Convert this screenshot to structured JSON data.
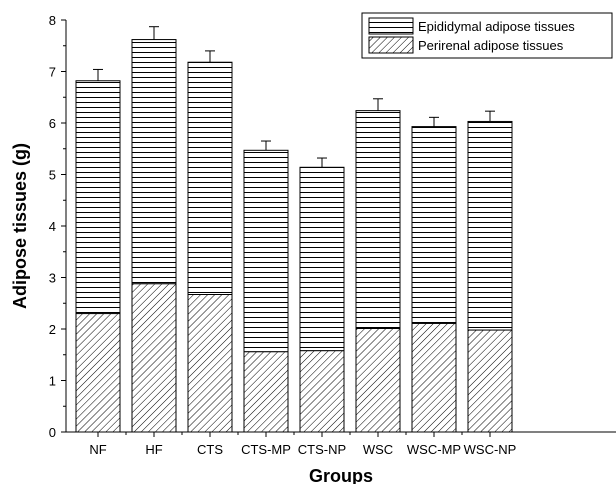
{
  "chart_data": {
    "type": "bar",
    "stacked": true,
    "categories": [
      "NF",
      "HF",
      "CTS",
      "CTS-MP",
      "CTS-NP",
      "WSC",
      "WSC-MP",
      "WSC-NP"
    ],
    "series": [
      {
        "name": "Perirenal adipose tissues",
        "pattern": "diagonal-hatch",
        "values": [
          2.3,
          2.88,
          2.67,
          1.56,
          1.58,
          2.01,
          2.11,
          1.98
        ]
      },
      {
        "name": "Epididymal adipose tissues",
        "pattern": "horizontal-lines",
        "values": [
          4.52,
          4.74,
          4.51,
          3.91,
          3.56,
          4.23,
          3.82,
          4.05
        ]
      }
    ],
    "totals": [
      6.82,
      7.62,
      7.18,
      5.47,
      5.14,
      6.24,
      5.93,
      6.03
    ],
    "error": [
      0.22,
      0.25,
      0.22,
      0.18,
      0.18,
      0.23,
      0.18,
      0.2
    ],
    "xlabel": "Groups",
    "ylabel": "Adipose tissues (g)",
    "ylim": [
      0,
      8
    ],
    "yticks": [
      0,
      1,
      2,
      3,
      4,
      5,
      6,
      7,
      8
    ],
    "grid": false,
    "legend_position": "top-right",
    "bar_color": "#000000"
  }
}
